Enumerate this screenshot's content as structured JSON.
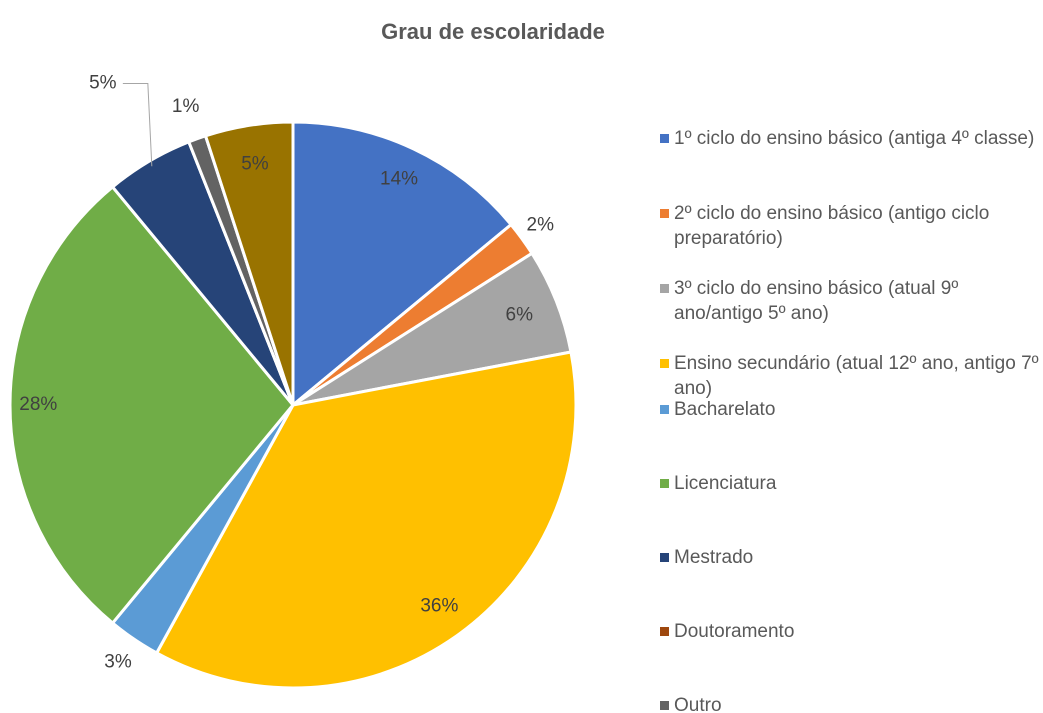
{
  "chart_data": {
    "type": "pie",
    "title": "Grau de escolaridade",
    "categories": [
      "1º ciclo do ensino básico (antiga 4º classe)",
      "2º ciclo do ensino básico (antigo ciclo preparatório)",
      "3º ciclo do ensino básico (atual 9º ano/antigo 5º ano)",
      "Ensino secundário (atual 12º ano, antigo 7º ano)",
      "Bacharelato",
      "Licenciatura",
      "Mestrado",
      "Doutoramento",
      "Outro",
      null
    ],
    "values": [
      14,
      2,
      6,
      36,
      3,
      28,
      5,
      0,
      1,
      5
    ],
    "value_labels": [
      "14%",
      "2%",
      "6%",
      "36%",
      "3%",
      "28%",
      "5%",
      null,
      "1%",
      "5%"
    ],
    "colors": [
      "#4472c4",
      "#ed7d31",
      "#a5a5a5",
      "#ffc000",
      "#5b9bd5",
      "#70ad47",
      "#264478",
      "#9e480e",
      "#636363",
      "#997300"
    ],
    "legend": "right"
  }
}
